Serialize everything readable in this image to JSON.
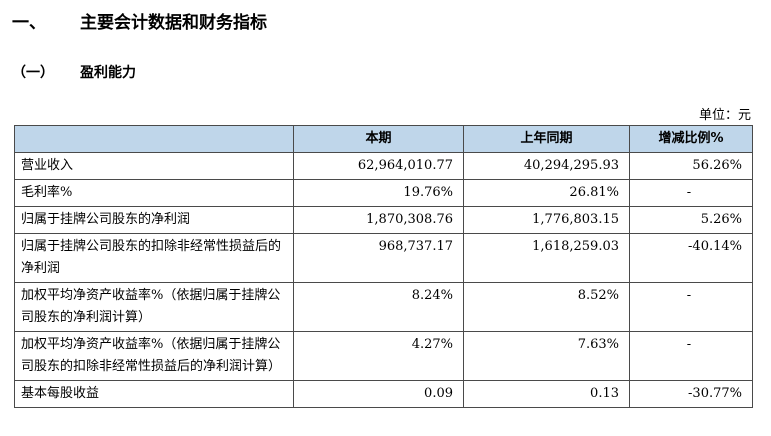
{
  "section_title": {
    "number": "一、",
    "text": "主要会计数据和财务指标"
  },
  "subsection_title": {
    "number": "（一）",
    "text": "盈利能力"
  },
  "unit_label": "单位：元",
  "table": {
    "headers": [
      "",
      "本期",
      "上年同期",
      "增减比例%"
    ],
    "rows": [
      [
        "营业收入",
        "62,964,010.77",
        "40,294,295.93",
        "56.26%"
      ],
      [
        "毛利率%",
        "19.76%",
        "26.81%",
        "-"
      ],
      [
        "归属于挂牌公司股东的净利润",
        "1,870,308.76",
        "1,776,803.15",
        "5.26%"
      ],
      [
        "归属于挂牌公司股东的扣除非经常性损益后的净利润",
        "968,737.17",
        "1,618,259.03",
        "-40.14%"
      ],
      [
        "加权平均净资产收益率%（依据归属于挂牌公司股东的净利润计算）",
        "8.24%",
        "8.52%",
        "-"
      ],
      [
        "加权平均净资产收益率%（依据归属于挂牌公司股东的扣除非经常性损益后的净利润计算）",
        "4.27%",
        "7.63%",
        "-"
      ],
      [
        "基本每股收益",
        "0.09",
        "0.13",
        "-30.77%"
      ]
    ]
  }
}
